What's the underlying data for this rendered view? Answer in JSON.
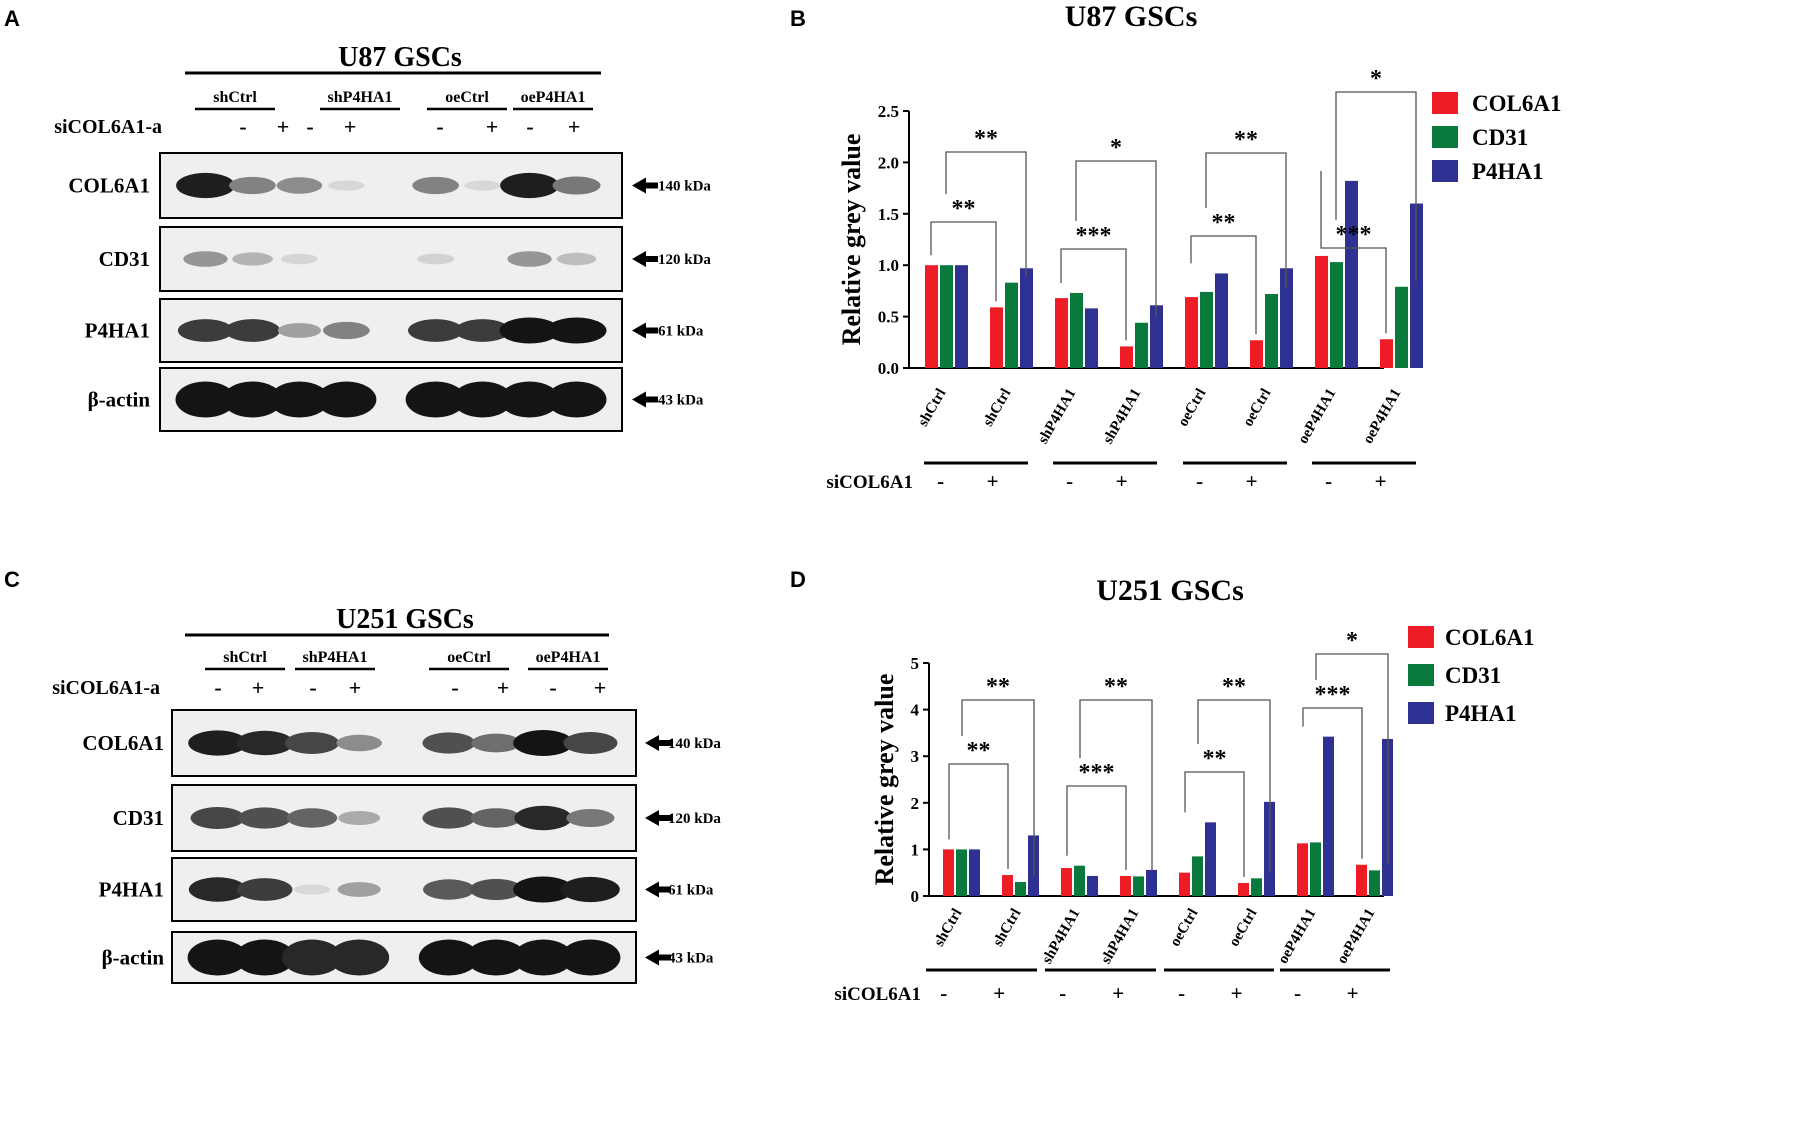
{
  "panels": [
    {
      "letter": "A",
      "blot": {
        "title": "U87 GSCs",
        "groups": [
          "shCtrl",
          "shP4HA1",
          "oeCtrl",
          "oeP4HA1"
        ],
        "treatment_label": "siCOL6A1-a",
        "signs": [
          "-",
          "+",
          "-",
          "+",
          "-",
          "+",
          "-",
          "+"
        ],
        "proteins": [
          {
            "name": "COL6A1",
            "kda": "140 kDa",
            "intensity": [
              0.95,
              0.45,
              0.4,
              0.02,
              0.45,
              0.02,
              0.95,
              0.5
            ]
          },
          {
            "name": "CD31",
            "kda": "120 kDa",
            "intensity": [
              0.35,
              0.2,
              0.03,
              0.0,
              0.05,
              0.0,
              0.35,
              0.15
            ]
          },
          {
            "name": "P4HA1",
            "kda": "61 kDa",
            "intensity": [
              0.8,
              0.8,
              0.3,
              0.45,
              0.8,
              0.8,
              1.0,
              1.0
            ]
          },
          {
            "name": "β-actin",
            "kda": "43 kDa",
            "intensity": [
              1.0,
              1.0,
              1.0,
              1.0,
              1.0,
              1.0,
              1.0,
              1.0
            ]
          }
        ]
      }
    },
    {
      "letter": "C",
      "blot": {
        "title": "U251 GSCs",
        "groups": [
          "shCtrl",
          "shP4HA1",
          "oeCtrl",
          "oeP4HA1"
        ],
        "treatment_label": "siCOL6A1-a",
        "signs": [
          "-",
          "+",
          "-",
          "+",
          "-",
          "+",
          "-",
          "+"
        ],
        "proteins": [
          {
            "name": "COL6A1",
            "kda": "140 kDa",
            "intensity": [
              0.95,
              0.9,
              0.75,
              0.4,
              0.7,
              0.55,
              1.0,
              0.75
            ]
          },
          {
            "name": "CD31",
            "kda": "120 kDa",
            "intensity": [
              0.75,
              0.7,
              0.6,
              0.25,
              0.7,
              0.6,
              0.9,
              0.5
            ]
          },
          {
            "name": "P4HA1",
            "kda": "61 kDa",
            "intensity": [
              0.9,
              0.8,
              0.02,
              0.3,
              0.65,
              0.7,
              1.0,
              0.95
            ]
          },
          {
            "name": "β-actin",
            "kda": "43 kDa",
            "intensity": [
              1.0,
              1.0,
              0.9,
              0.9,
              1.0,
              1.0,
              1.0,
              1.0
            ]
          }
        ]
      }
    }
  ],
  "legend_colors": {
    "COL6A1": "#ee1c25",
    "CD31": "#0a7a3c",
    "P4HA1": "#2e3192"
  },
  "chart_data": [
    {
      "letter": "B",
      "type": "bar",
      "title": "U87 GSCs",
      "ylabel": "Relative grey value",
      "xlabel": "",
      "ylim": [
        0,
        2.5
      ],
      "yticks": [
        "0.0",
        "0.5",
        "1.0",
        "1.5",
        "2.0",
        "2.5"
      ],
      "categories": [
        "shCtrl",
        "shCtrl",
        "shP4HA1",
        "shP4HA1",
        "oeCtrl",
        "oeCtrl",
        "oeP4HA1",
        "oeP4HA1"
      ],
      "series": [
        {
          "name": "COL6A1",
          "values": [
            1.0,
            0.59,
            0.68,
            0.21,
            0.69,
            0.27,
            1.09,
            0.28
          ]
        },
        {
          "name": "CD31",
          "values": [
            1.0,
            0.83,
            0.73,
            0.44,
            0.74,
            0.72,
            1.03,
            0.79
          ]
        },
        {
          "name": "P4HA1",
          "values": [
            1.0,
            0.97,
            0.58,
            0.61,
            0.92,
            0.97,
            1.82,
            1.6
          ]
        }
      ],
      "sig_lower": [
        "**",
        "***",
        "**",
        "***"
      ],
      "sig_upper": [
        "**",
        "*",
        "**",
        "*"
      ],
      "treatment_label": "siCOL6A1",
      "signs": [
        "-",
        "+",
        "-",
        "+",
        "-",
        "+",
        "-",
        "+"
      ],
      "legend_position": "top-right"
    },
    {
      "letter": "D",
      "type": "bar",
      "title": "U251 GSCs",
      "ylabel": "Relative grey value",
      "xlabel": "",
      "ylim": [
        0,
        5
      ],
      "yticks": [
        "0",
        "1",
        "2",
        "3",
        "4",
        "5"
      ],
      "categories": [
        "shCtrl",
        "shCtrl",
        "shP4HA1",
        "shP4HA1",
        "oeCtrl",
        "oeCtrl",
        "oeP4HA1",
        "oeP4HA1"
      ],
      "series": [
        {
          "name": "COL6A1",
          "values": [
            1.0,
            0.45,
            0.6,
            0.43,
            0.5,
            0.28,
            1.13,
            0.67
          ]
        },
        {
          "name": "CD31",
          "values": [
            1.0,
            0.3,
            0.65,
            0.42,
            0.85,
            0.38,
            1.15,
            0.55
          ]
        },
        {
          "name": "P4HA1",
          "values": [
            1.0,
            1.3,
            0.43,
            0.56,
            1.58,
            2.02,
            3.42,
            3.37
          ]
        }
      ],
      "sig_lower": [
        "**",
        "***",
        "**",
        "***"
      ],
      "sig_upper": [
        "**",
        "**",
        "**",
        "*"
      ],
      "treatment_label": "siCOL6A1",
      "signs": [
        "-",
        "+",
        "-",
        "+",
        "-",
        "+",
        "-",
        "+"
      ],
      "legend_position": "top-right"
    }
  ]
}
